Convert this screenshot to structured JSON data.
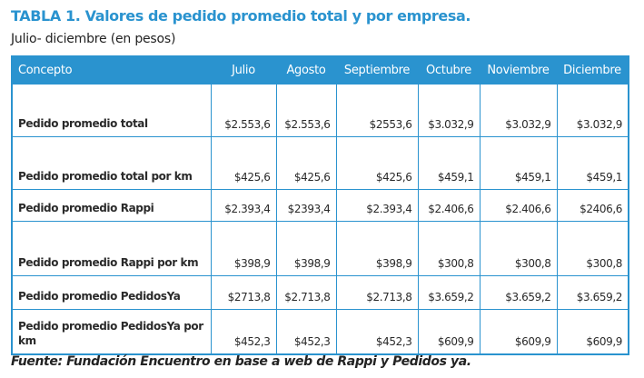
{
  "title": "TABLA 1. Valores de pedido promedio total y por empresa.",
  "subtitle": "Julio- diciembre (en pesos)",
  "table": {
    "headers": [
      "Concepto",
      "Julio",
      "Agosto",
      "Septiembre",
      "Octubre",
      "Noviembre",
      "Diciembre"
    ],
    "rows": [
      {
        "concept": "Pedido promedio total",
        "values": [
          "$2.553,6",
          "$2.553,6",
          "$2553,6",
          "$3.032,9",
          "$3.032,9",
          "$3.032,9"
        ]
      },
      {
        "concept": "Pedido promedio total por km",
        "values": [
          "$425,6",
          "$425,6",
          "$425,6",
          "$459,1",
          "$459,1",
          "$459,1"
        ]
      },
      {
        "concept": "Pedido promedio Rappi",
        "values": [
          "$2.393,4",
          "$2393,4",
          "$2.393,4",
          "$2.406,6",
          "$2.406,6",
          "$2406,6"
        ]
      },
      {
        "concept": "Pedido promedio Rappi por km",
        "values": [
          "$398,9",
          "$398,9",
          "$398,9",
          "$300,8",
          "$300,8",
          "$300,8"
        ]
      },
      {
        "concept": "Pedido promedio PedidosYa",
        "values": [
          "$2713,8",
          "$2.713,8",
          "$2.713,8",
          "$3.659,2",
          "$3.659,2",
          "$3.659,2"
        ]
      },
      {
        "concept": "Pedido promedio PedidosYa por km",
        "values": [
          "$452,3",
          "$452,3",
          "$452,3",
          "$609,9",
          "$609,9",
          "$609,9"
        ]
      }
    ]
  },
  "source": "Fuente: Fundación Encuentro en base a web de Rappi y Pedidos ya.",
  "colors": {
    "accent": "#2a93cf",
    "header_text": "#ffffff",
    "body_text": "#2a2a2a"
  }
}
